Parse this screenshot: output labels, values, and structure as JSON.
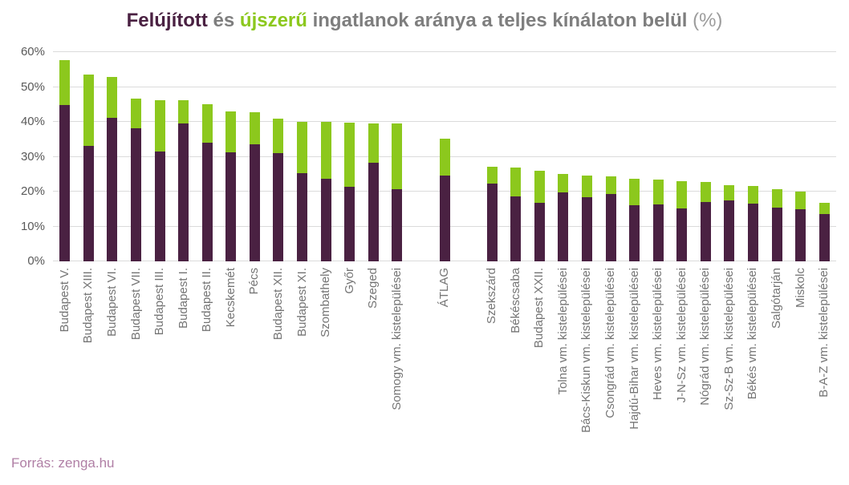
{
  "title": {
    "parts": [
      {
        "text": "Felújított",
        "color": "#4a2142"
      },
      {
        "text": " és ",
        "color": "#7e7e7e"
      },
      {
        "text": "újszerű",
        "color": "#8cc81d"
      },
      {
        "text": " ingatlanok aránya a teljes kínálaton belül ",
        "color": "#7e7e7e"
      },
      {
        "text": "(%)",
        "color": "#9c9c9c"
      }
    ]
  },
  "source": "Forrás: zenga.hu",
  "colors": {
    "renovated": "#4a2142",
    "newish": "#8cc81d",
    "gridline": "#dbdbdb",
    "axis_text": "#595959",
    "label_text": "#757575",
    "source_text": "#b07fa5"
  },
  "chart_data": {
    "type": "bar",
    "stacked": true,
    "title": "Felújított és újszerű ingatlanok aránya a teljes kínálaton belül (%)",
    "series_names": [
      "Felújított",
      "újszerű"
    ],
    "ylim": [
      0,
      60
    ],
    "yticks": [
      "0%",
      "10%",
      "20%",
      "30%",
      "40%",
      "50%",
      "60%"
    ],
    "grid": true,
    "legend": "none (series identified by colored words in title)",
    "bars": [
      {
        "label": "Budapest V.",
        "felujitott": 44.8,
        "ujszeru": 12.9
      },
      {
        "label": "Budapest XIII.",
        "felujitott": 33.2,
        "ujszeru": 20.3
      },
      {
        "label": "Budapest VI.",
        "felujitott": 41.2,
        "ujszeru": 11.7
      },
      {
        "label": "Budapest VII.",
        "felujitott": 38.1,
        "ujszeru": 8.5
      },
      {
        "label": "Budapest III.",
        "felujitott": 31.4,
        "ujszeru": 14.9
      },
      {
        "label": "Budapest I.",
        "felujitott": 39.6,
        "ujszeru": 6.7
      },
      {
        "label": "Budapest II.",
        "felujitott": 34.1,
        "ujszeru": 10.9
      },
      {
        "label": "Kecskemét",
        "felujitott": 31.2,
        "ujszeru": 11.7
      },
      {
        "label": "Pécs",
        "felujitott": 33.6,
        "ujszeru": 9.2
      },
      {
        "label": "Budapest XII.",
        "felujitott": 31.0,
        "ujszeru": 10.0
      },
      {
        "label": "Budapest XI.",
        "felujitott": 25.3,
        "ujszeru": 14.7
      },
      {
        "label": "Szombathely",
        "felujitott": 23.6,
        "ujszeru": 16.3
      },
      {
        "label": "Győr",
        "felujitott": 21.3,
        "ujszeru": 18.4
      },
      {
        "label": "Szeged",
        "felujitott": 28.2,
        "ujszeru": 11.4
      },
      {
        "label": "Somogy vm. kistelepülései",
        "felujitott": 20.6,
        "ujszeru": 19.0,
        "gap_after": true
      },
      {
        "label": "ÁTLAG",
        "felujitott": 24.5,
        "ujszeru": 10.7,
        "gap_after": true
      },
      {
        "label": "Szekszárd",
        "felujitott": 22.2,
        "ujszeru": 4.9
      },
      {
        "label": "Békéscsaba",
        "felujitott": 18.6,
        "ujszeru": 8.2
      },
      {
        "label": "Budapest XXII.",
        "felujitott": 16.8,
        "ujszeru": 9.1
      },
      {
        "label": "Tolna vm. kistelepülései",
        "felujitott": 19.7,
        "ujszeru": 5.4
      },
      {
        "label": "Bács-Kiskun vm. kistelepülései",
        "felujitott": 18.5,
        "ujszeru": 6.1
      },
      {
        "label": "Csongrád vm. kistelepülései",
        "felujitott": 19.2,
        "ujszeru": 5.2
      },
      {
        "label": "Hajdú-Bihar vm. kistelepülései",
        "felujitott": 16.0,
        "ujszeru": 7.6
      },
      {
        "label": "Heves vm. kistelepülései",
        "felujitott": 16.3,
        "ujszeru": 7.2
      },
      {
        "label": "J-N-Sz vm. kistelepülései",
        "felujitott": 15.1,
        "ujszeru": 7.9
      },
      {
        "label": "Nógrád vm. kistelepülései",
        "felujitott": 17.1,
        "ujszeru": 5.7
      },
      {
        "label": "Sz-Sz-B vm. kistelepülései",
        "felujitott": 17.4,
        "ujszeru": 4.5
      },
      {
        "label": "Békés vm. kistelepülései",
        "felujitott": 16.6,
        "ujszeru": 4.9
      },
      {
        "label": "Salgótarján",
        "felujitott": 15.3,
        "ujszeru": 5.5
      },
      {
        "label": "Miskolc",
        "felujitott": 15.0,
        "ujszeru": 4.9
      },
      {
        "label": "B-A-Z vm. kistelepülései",
        "felujitott": 13.6,
        "ujszeru": 3.3
      }
    ]
  }
}
